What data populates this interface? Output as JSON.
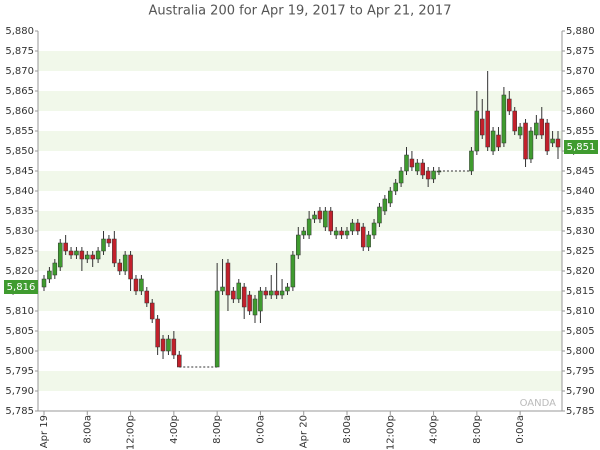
{
  "chart_data": {
    "type": "candlestick",
    "title": "Australia 200 for Apr 19, 2017 to Apr 21, 2017",
    "watermark": "OANDA",
    "up_color": "#3f9b2f",
    "down_color": "#c2202b",
    "categories": [
      "Apr 19",
      null,
      null,
      null,
      null,
      null,
      null,
      null,
      "8:00a",
      null,
      null,
      null,
      null,
      null,
      null,
      null,
      "12:00p",
      null,
      null,
      null,
      null,
      null,
      null,
      null,
      "4:00p",
      null,
      null,
      null,
      null,
      null,
      null,
      null,
      "8:00p",
      null,
      null,
      null,
      null,
      null,
      null,
      null,
      "0:00a",
      null,
      null,
      null,
      null,
      null,
      null,
      null,
      "Apr 20",
      null,
      null,
      null,
      null,
      null,
      null,
      null,
      "8:00a",
      null,
      null,
      null,
      null,
      null,
      null,
      null,
      "12:00p",
      null,
      null,
      null,
      null,
      null,
      null,
      null,
      "4:00p",
      null,
      null,
      null,
      null,
      null,
      null,
      null,
      "8:00p",
      null,
      null,
      null,
      null,
      null,
      null,
      null,
      "0:00a",
      null,
      null,
      null,
      null,
      null,
      null,
      null
    ],
    "open": [
      5816,
      5818,
      5819,
      5821,
      5827,
      5825,
      5824,
      5825,
      5823,
      5824,
      5823,
      5825,
      5828,
      5828,
      5822,
      5820,
      5824,
      5818,
      5815,
      5815,
      5812,
      5808,
      5803,
      5800,
      5803,
      5799,
      null,
      null,
      null,
      null,
      null,
      null,
      5796,
      5815,
      5822,
      5815,
      5813,
      5816,
      5814,
      5809,
      5810,
      5815,
      5814,
      5815,
      5814,
      5815,
      5816,
      5824,
      5829,
      5829,
      5833,
      5835,
      5831,
      5835,
      5829,
      5830,
      5829,
      5830,
      5832,
      5831,
      5826,
      5829,
      5832,
      5835,
      5837,
      5840,
      5842,
      5845,
      5848,
      5845,
      5847,
      5845,
      5843,
      5845,
      null,
      null,
      null,
      null,
      null,
      5845,
      5850,
      5858,
      5860,
      5850,
      5854,
      5852,
      5863,
      5860,
      5854,
      5857,
      5848,
      5854,
      5858,
      5857,
      5852,
      5853
    ],
    "high": [
      5819,
      5821,
      5823,
      5828,
      5829,
      5826,
      5826,
      5826,
      5825,
      5825,
      5826,
      5830,
      5829,
      5830,
      5823,
      5825,
      5825,
      5819,
      5819,
      5816,
      5813,
      5809,
      5804,
      5804,
      5805,
      5800,
      null,
      null,
      null,
      null,
      null,
      null,
      5822,
      5823,
      5823,
      5816,
      5818,
      5817,
      5815,
      5814,
      5816,
      5816,
      5819,
      5822,
      5818,
      5817,
      5825,
      5831,
      5831,
      5835,
      5835,
      5836,
      5836,
      5836,
      5831,
      5831,
      5831,
      5833,
      5833,
      5832,
      5830,
      5833,
      5837,
      5839,
      5841,
      5843,
      5846,
      5851,
      5850,
      5848,
      5848,
      5846,
      5846,
      5846,
      null,
      null,
      null,
      null,
      null,
      5851,
      5865,
      5863,
      5870,
      5856,
      5856,
      5866,
      5865,
      5861,
      5857,
      5858,
      5856,
      5859,
      5861,
      5858,
      5855,
      5855
    ],
    "low": [
      5815,
      5817,
      5818,
      5820,
      5824,
      5823,
      5823,
      5820,
      5822,
      5821,
      5822,
      5824,
      5826,
      5821,
      5819,
      5819,
      5815,
      5814,
      5814,
      5811,
      5807,
      5799,
      5798,
      5799,
      5798,
      5796,
      null,
      null,
      null,
      null,
      null,
      null,
      5796,
      5814,
      5810,
      5812,
      5812,
      5808,
      5809,
      5807,
      5807,
      5813,
      5813,
      5813,
      5813,
      5814,
      5815,
      5823,
      5828,
      5828,
      5832,
      5832,
      5830,
      5829,
      5828,
      5828,
      5828,
      5829,
      5829,
      5825,
      5825,
      5828,
      5831,
      5834,
      5836,
      5839,
      5841,
      5844,
      5845,
      5844,
      5843,
      5841,
      5842,
      5844,
      null,
      null,
      null,
      null,
      null,
      5844,
      5849,
      5853,
      5850,
      5849,
      5850,
      5851,
      5859,
      5854,
      5853,
      5846,
      5847,
      5853,
      5853,
      5849,
      5851,
      5848
    ],
    "close": [
      5818,
      5820,
      5822,
      5827,
      5825,
      5824,
      5825,
      5823,
      5824,
      5823,
      5825,
      5828,
      5827,
      5822,
      5820,
      5824,
      5818,
      5815,
      5818,
      5812,
      5808,
      5801,
      5800,
      5803,
      5799,
      5796,
      null,
      null,
      null,
      null,
      null,
      null,
      5815,
      5816,
      5814,
      5813,
      5817,
      5811,
      5810,
      5813,
      5815,
      5814,
      5815,
      5814,
      5815,
      5816,
      5824,
      5829,
      5830,
      5833,
      5834,
      5833,
      5835,
      5830,
      5830,
      5829,
      5830,
      5832,
      5830,
      5826,
      5829,
      5832,
      5836,
      5838,
      5840,
      5842,
      5845,
      5849,
      5846,
      5847,
      5844,
      5843,
      5845,
      5845,
      null,
      null,
      null,
      null,
      null,
      5850,
      5860,
      5854,
      5851,
      5855,
      5851,
      5864,
      5860,
      5855,
      5856,
      5848,
      5855,
      5857,
      5854,
      5850,
      5853,
      5851
    ],
    "ylim": [
      5785,
      5880
    ],
    "yticks": [
      {
        "value": 5785,
        "label": "5,785"
      },
      {
        "value": 5790,
        "label": "5,790"
      },
      {
        "value": 5795,
        "label": "5,795"
      },
      {
        "value": 5800,
        "label": "5,800"
      },
      {
        "value": 5805,
        "label": "5,805"
      },
      {
        "value": 5810,
        "label": "5,810"
      },
      {
        "value": 5815,
        "label": "5,815"
      },
      {
        "value": 5820,
        "label": "5,820"
      },
      {
        "value": 5825,
        "label": "5,825"
      },
      {
        "value": 5830,
        "label": "5,830"
      },
      {
        "value": 5835,
        "label": "5,835"
      },
      {
        "value": 5840,
        "label": "5,840"
      },
      {
        "value": 5845,
        "label": "5,845"
      },
      {
        "value": 5850,
        "label": "5,850"
      },
      {
        "value": 5855,
        "label": "5,855"
      },
      {
        "value": 5860,
        "label": "5,860"
      },
      {
        "value": 5865,
        "label": "5,865"
      },
      {
        "value": 5870,
        "label": "5,870"
      },
      {
        "value": 5875,
        "label": "5,875"
      },
      {
        "value": 5880,
        "label": "5,880"
      }
    ],
    "price_markers": [
      {
        "value": 5816,
        "label": "5,816",
        "side": "left"
      },
      {
        "value": 5851,
        "label": "5,851",
        "side": "right"
      }
    ]
  }
}
